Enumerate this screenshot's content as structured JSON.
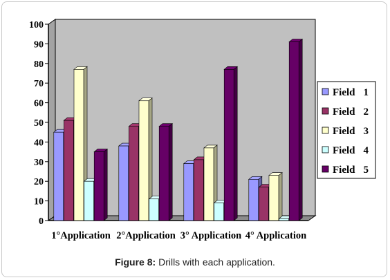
{
  "caption": {
    "label": "Figure 8:",
    "text": " Drills with each application."
  },
  "colors": {
    "plot_bg": "#c0c0c0",
    "floor": "#8c8c8c",
    "series": [
      "#9999ff",
      "#993366",
      "#ffffcc",
      "#ccffff",
      "#660066"
    ]
  },
  "chart_data": {
    "type": "bar",
    "title": "",
    "xlabel": "",
    "ylabel": "",
    "ylim": [
      0,
      100
    ],
    "yticks": [
      0,
      10,
      20,
      30,
      40,
      50,
      60,
      70,
      80,
      90,
      100
    ],
    "categories": [
      "1°Application",
      "2°Application",
      "3° Application",
      "4° Application"
    ],
    "series": [
      {
        "name": "Field 1",
        "legend_label": "Field",
        "legend_num": "1",
        "values": [
          45,
          38,
          29,
          21
        ]
      },
      {
        "name": "Field 2",
        "legend_label": "Field",
        "legend_num": "2",
        "values": [
          51,
          48,
          31,
          17
        ]
      },
      {
        "name": "Field 3",
        "legend_label": "Field",
        "legend_num": "3",
        "values": [
          77,
          61,
          37,
          23
        ]
      },
      {
        "name": "Field 4",
        "legend_label": "Field",
        "legend_num": "4",
        "values": [
          20,
          11,
          9,
          1
        ]
      },
      {
        "name": "Field 5",
        "legend_label": "Field",
        "legend_num": "5",
        "values": [
          35,
          48,
          77,
          91
        ]
      }
    ],
    "grid": false,
    "legend_position": "right"
  }
}
